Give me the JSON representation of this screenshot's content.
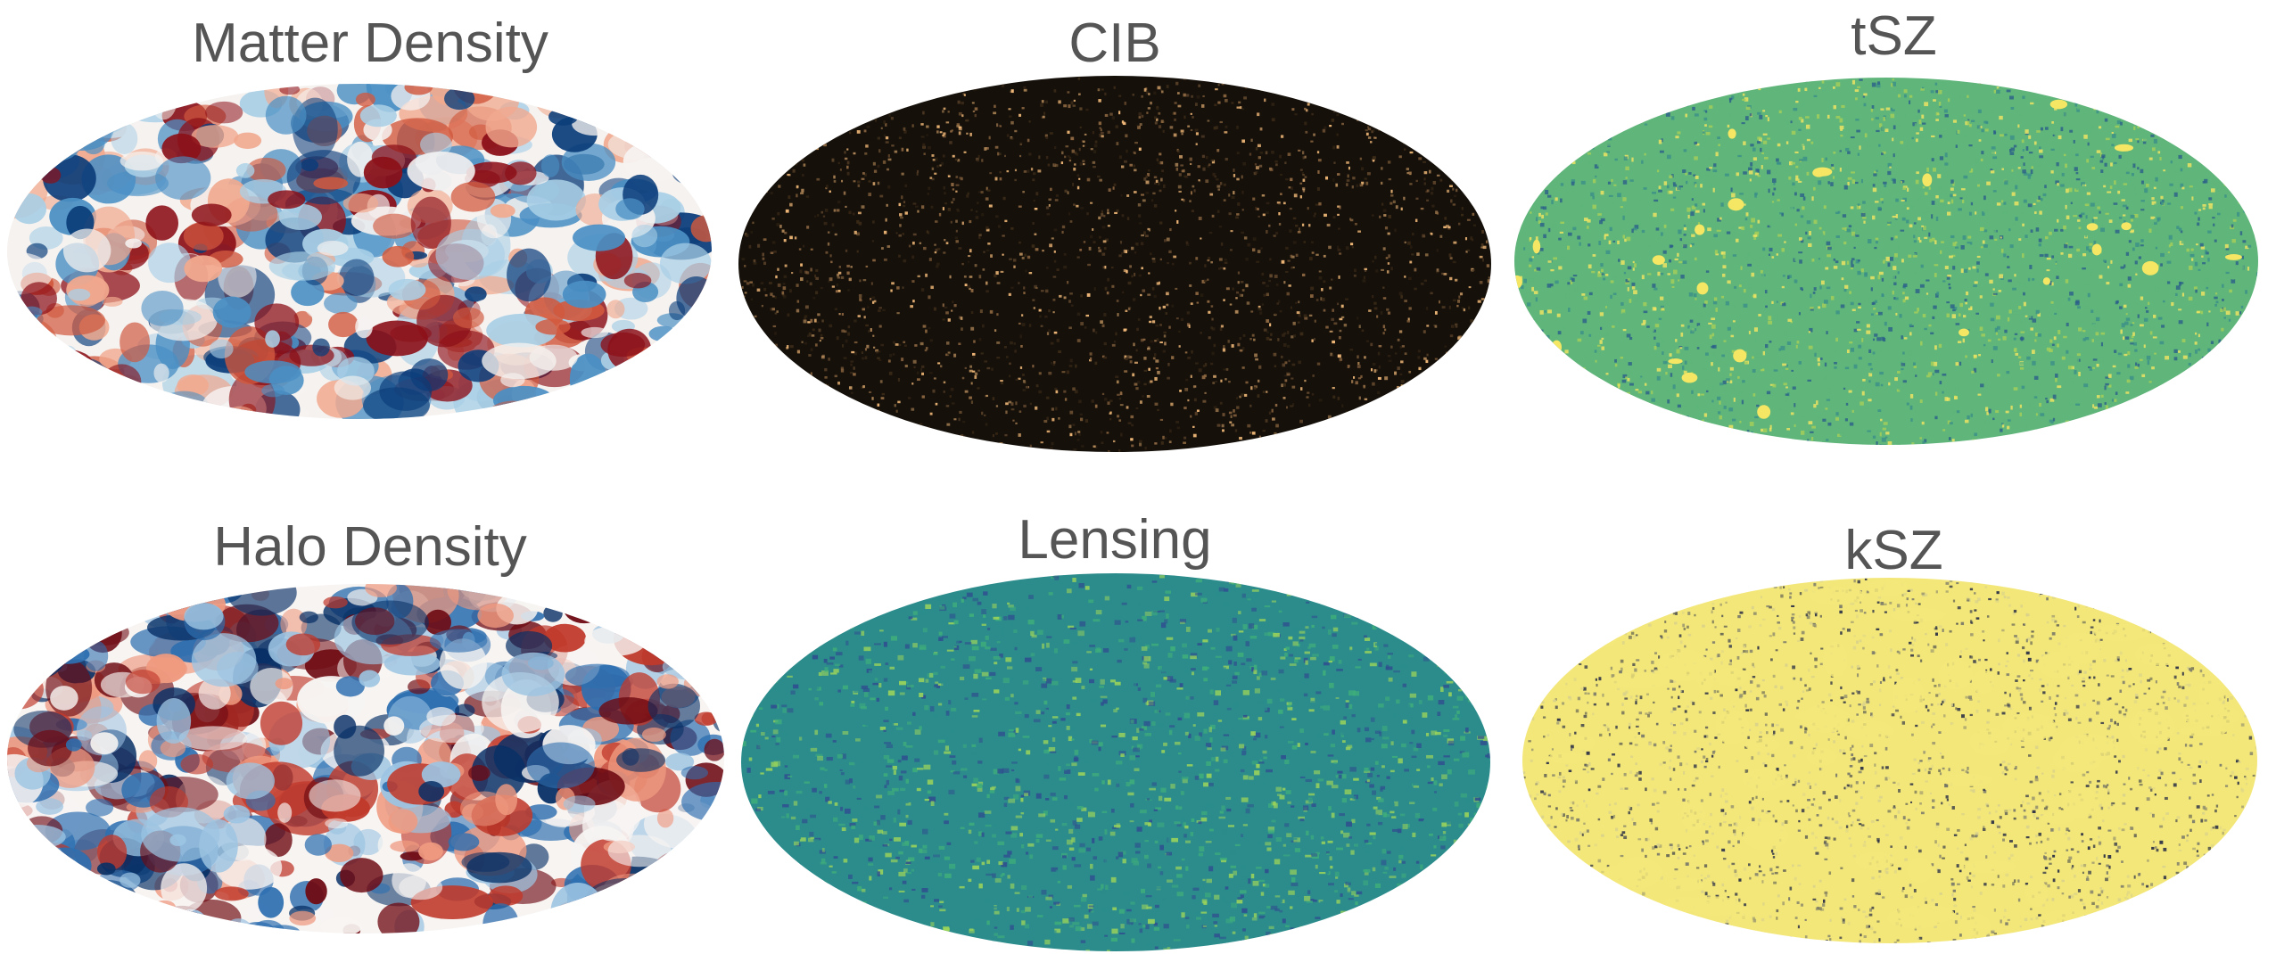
{
  "figure": {
    "panels": [
      {
        "title": "Matter Density",
        "colormap": "diverging red-white-blue",
        "colors": [
          "#0b3d7a",
          "#4a8fc4",
          "#a9cfe6",
          "#f5f2f0",
          "#f1a98e",
          "#d1593e",
          "#8c1018"
        ]
      },
      {
        "title": "CIB",
        "colormap": "copper on black",
        "colors": [
          "#15100a",
          "#3a2a18",
          "#8a6540",
          "#f0b878"
        ]
      },
      {
        "title": "tSZ",
        "colormap": "viridis-like",
        "colors": [
          "#2b5f8a",
          "#3a8f88",
          "#5fb57a",
          "#a6cf5a",
          "#f5e663"
        ]
      },
      {
        "title": "Halo Density",
        "colormap": "diverging red-white-blue",
        "colors": [
          "#083066",
          "#2e6fb0",
          "#9cc4e2",
          "#f7f4f2",
          "#ef9a80",
          "#c0392b",
          "#6e0a12"
        ]
      },
      {
        "title": "Lensing",
        "colormap": "viridis-like",
        "colors": [
          "#2f4f8f",
          "#2c8c8c",
          "#3fae7a",
          "#9cd45a"
        ]
      },
      {
        "title": "kSZ",
        "colormap": "cividis-like",
        "colors": [
          "#2a2f45",
          "#7a7a6a",
          "#d9d28a",
          "#f3e77a"
        ]
      }
    ]
  }
}
